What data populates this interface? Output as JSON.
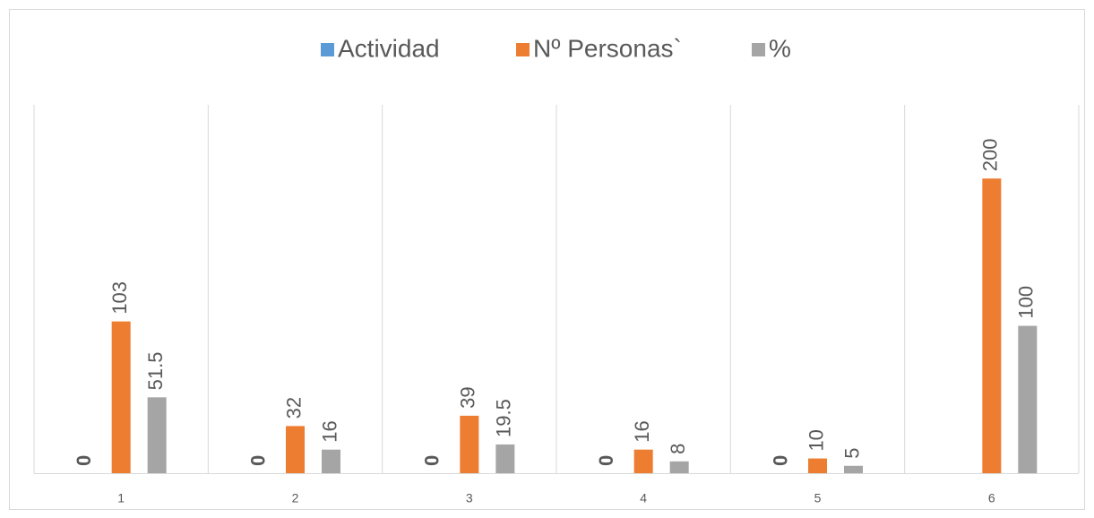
{
  "chart_data": {
    "type": "bar",
    "categories": [
      "1",
      "2",
      "3",
      "4",
      "5",
      "6"
    ],
    "series": [
      {
        "name": "Actividad",
        "color": "#5b9bd5",
        "values": [
          0,
          0,
          0,
          0,
          0,
          null
        ]
      },
      {
        "name": "Nº Personas`",
        "color": "#ed7d31",
        "values": [
          103,
          32,
          39,
          16,
          10,
          200
        ]
      },
      {
        "name": "%",
        "color": "#a5a5a5",
        "values": [
          51.5,
          16,
          19.5,
          8,
          5,
          100
        ]
      }
    ],
    "ylim": [
      0,
      250
    ],
    "legend": "top"
  }
}
